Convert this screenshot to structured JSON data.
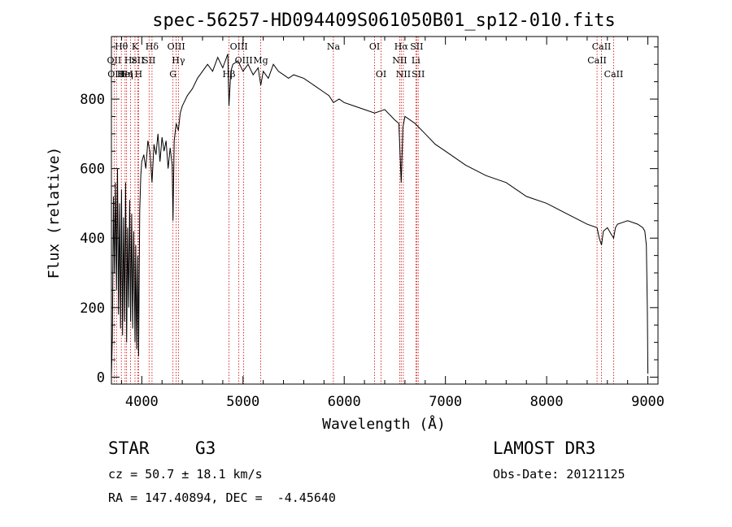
{
  "chart_data": {
    "type": "line",
    "title": "spec-56257-HD094409S061050B01_sp12-010.fits",
    "xlabel": "Wavelength (Å)",
    "ylabel": "Flux (relative)",
    "xlim": [
      3700,
      9100
    ],
    "ylim": [
      -20,
      980
    ],
    "xticks": [
      4000,
      5000,
      6000,
      7000,
      8000,
      9000
    ],
    "yticks": [
      0,
      200,
      400,
      600,
      800
    ],
    "grid": false,
    "series": [
      {
        "name": "spectrum",
        "x": [
          3700,
          3710,
          3720,
          3730,
          3740,
          3750,
          3760,
          3770,
          3780,
          3790,
          3800,
          3810,
          3820,
          3830,
          3840,
          3850,
          3860,
          3870,
          3880,
          3890,
          3900,
          3910,
          3920,
          3933,
          3940,
          3950,
          3960,
          3968,
          3980,
          3990,
          4000,
          4020,
          4040,
          4060,
          4080,
          4101,
          4120,
          4140,
          4160,
          4180,
          4200,
          4220,
          4240,
          4260,
          4280,
          4300,
          4308,
          4320,
          4340,
          4361,
          4380,
          4400,
          4450,
          4500,
          4550,
          4600,
          4650,
          4700,
          4750,
          4800,
          4850,
          4861,
          4880,
          4900,
          4950,
          5000,
          5050,
          5100,
          5150,
          5175,
          5200,
          5250,
          5300,
          5350,
          5400,
          5450,
          5500,
          5600,
          5700,
          5800,
          5850,
          5893,
          5950,
          6000,
          6100,
          6200,
          6300,
          6400,
          6500,
          6540,
          6563,
          6580,
          6600,
          6700,
          6800,
          6900,
          7000,
          7200,
          7400,
          7600,
          7800,
          8000,
          8200,
          8400,
          8498,
          8520,
          8542,
          8560,
          8600,
          8640,
          8662,
          8680,
          8700,
          8800,
          8900,
          8950,
          8970,
          8985,
          8995,
          9000
        ],
        "values": [
          0,
          120,
          520,
          300,
          560,
          250,
          600,
          180,
          500,
          140,
          540,
          120,
          460,
          160,
          560,
          100,
          430,
          200,
          510,
          160,
          470,
          140,
          420,
          100,
          380,
          80,
          350,
          60,
          480,
          580,
          620,
          640,
          600,
          680,
          650,
          560,
          670,
          640,
          700,
          620,
          690,
          650,
          680,
          600,
          660,
          610,
          450,
          680,
          730,
          710,
          760,
          780,
          810,
          830,
          860,
          880,
          900,
          880,
          920,
          890,
          930,
          780,
          880,
          900,
          910,
          880,
          900,
          870,
          890,
          840,
          880,
          860,
          900,
          880,
          870,
          860,
          870,
          860,
          840,
          820,
          810,
          790,
          800,
          790,
          780,
          770,
          760,
          770,
          740,
          730,
          560,
          720,
          750,
          730,
          700,
          670,
          650,
          610,
          580,
          560,
          520,
          500,
          470,
          440,
          430,
          400,
          380,
          420,
          430,
          410,
          400,
          430,
          440,
          450,
          440,
          430,
          420,
          380,
          200,
          10
        ]
      }
    ],
    "lines": [
      {
        "label": "Hθ",
        "wl": 3798
      },
      {
        "label": "OII",
        "wl": 3727
      },
      {
        "label": "OIII",
        "wl": 3750
      },
      {
        "label": "Hε",
        "wl": 3889
      },
      {
        "label": "HeI",
        "wl": 3835
      },
      {
        "label": "K",
        "wl": 3933
      },
      {
        "label": "Hη",
        "wl": 3850
      },
      {
        "label": "SII",
        "wl": 3960
      },
      {
        "label": "H",
        "wl": 3968
      },
      {
        "label": "Hδ",
        "wl": 4101
      },
      {
        "label": "SII",
        "wl": 4072
      },
      {
        "label": "OIII",
        "wl": 4340
      },
      {
        "label": "Hγ",
        "wl": 4362
      },
      {
        "label": "G",
        "wl": 4308
      },
      {
        "label": "OIII",
        "wl": 4959
      },
      {
        "label": "OIII",
        "wl": 5007
      },
      {
        "label": "Hβ",
        "wl": 4861
      },
      {
        "label": "Mg",
        "wl": 5175
      },
      {
        "label": "Na",
        "wl": 5893
      },
      {
        "label": "OI",
        "wl": 6300
      },
      {
        "label": "OI",
        "wl": 6364
      },
      {
        "label": "Hα",
        "wl": 6563
      },
      {
        "label": "NII",
        "wl": 6548
      },
      {
        "label": "NII",
        "wl": 6584
      },
      {
        "label": "SII",
        "wl": 6716
      },
      {
        "label": "Li",
        "wl": 6708
      },
      {
        "label": "SII",
        "wl": 6731
      },
      {
        "label": "CaII",
        "wl": 8542
      },
      {
        "label": "CaII",
        "wl": 8498
      },
      {
        "label": "CaII",
        "wl": 8662
      }
    ]
  },
  "info": {
    "object_type": "STAR",
    "subclass": "G3",
    "survey": "LAMOST DR3",
    "cz": "cz = 50.7 ± 18.1 km/s",
    "obs_date": "Obs-Date: 20121125",
    "coords": "RA = 147.40894, DEC =  -4.45640"
  },
  "colors": {
    "spectrum": "#000000",
    "line_marker": "#cc0000",
    "background": "#ffffff"
  }
}
